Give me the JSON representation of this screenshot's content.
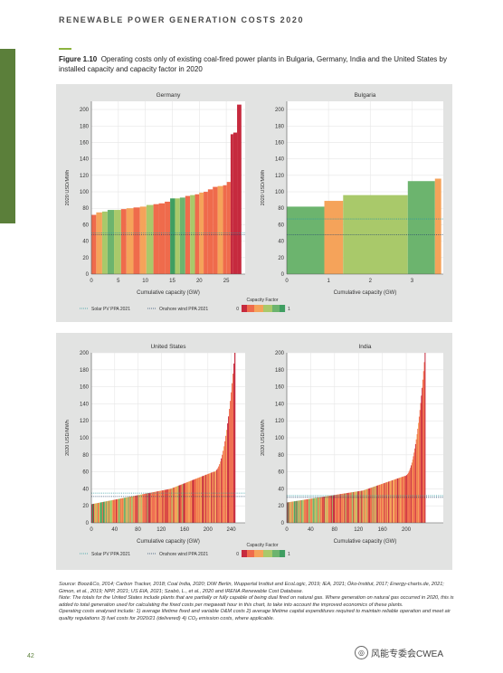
{
  "header": {
    "running_title": "RENEWABLE POWER GENERATION COSTS 2020"
  },
  "figure": {
    "number": "Figure 1.10",
    "caption": "Operating costs only of existing coal-fired power plants in Bulgaria, Germany, India and the United States by installed capacity and capacity factor in 2020"
  },
  "colors": {
    "panel_bg": "#e2e3e2",
    "solar_line": "#2c9aa0",
    "wind_line": "#2a4a6e",
    "cf_scale": [
      "#c62a3e",
      "#ef6b4c",
      "#f5a35a",
      "#a9c96a",
      "#6cb46e",
      "#3f9e61"
    ]
  },
  "legend": {
    "solar": "Solar PV PPA 2021",
    "wind": "Onshore wind PPA 2021",
    "cf_title": "Capacity Factor",
    "cf_min": "0",
    "cf_max": "1"
  },
  "chart_data": [
    {
      "type": "bar",
      "title": "Germany",
      "xlabel": "Cumulative capacity (GW)",
      "ylabel": "2020 USD/MWh",
      "xlim": [
        0,
        28.5
      ],
      "ylim": [
        0,
        210
      ],
      "xticks": [
        0,
        5,
        10,
        15,
        20,
        25
      ],
      "yticks": [
        0,
        20,
        40,
        60,
        80,
        100,
        120,
        140,
        160,
        180,
        200
      ],
      "solar_ppa": 50,
      "wind_ppa": 48,
      "bars": [
        {
          "x0": 0,
          "x1": 0.9,
          "value": 72,
          "cf": 0.28
        },
        {
          "x0": 0.9,
          "x1": 2.0,
          "value": 75,
          "cf": 0.45
        },
        {
          "x0": 2.0,
          "x1": 3.0,
          "value": 76,
          "cf": 0.6
        },
        {
          "x0": 3.0,
          "x1": 4.2,
          "value": 78,
          "cf": 0.7
        },
        {
          "x0": 4.2,
          "x1": 5.5,
          "value": 78,
          "cf": 0.55
        },
        {
          "x0": 5.5,
          "x1": 6.5,
          "value": 79,
          "cf": 0.25
        },
        {
          "x0": 6.5,
          "x1": 7.8,
          "value": 80,
          "cf": 0.45
        },
        {
          "x0": 7.8,
          "x1": 9.0,
          "value": 81,
          "cf": 0.2
        },
        {
          "x0": 9.0,
          "x1": 10.2,
          "value": 82,
          "cf": 0.3
        },
        {
          "x0": 10.2,
          "x1": 11.5,
          "value": 84,
          "cf": 0.58
        },
        {
          "x0": 11.5,
          "x1": 12.5,
          "value": 85,
          "cf": 0.22
        },
        {
          "x0": 12.5,
          "x1": 13.6,
          "value": 86,
          "cf": 0.28
        },
        {
          "x0": 13.6,
          "x1": 14.6,
          "value": 88,
          "cf": 0.2
        },
        {
          "x0": 14.6,
          "x1": 15.5,
          "value": 92,
          "cf": 0.9
        },
        {
          "x0": 15.5,
          "x1": 16.4,
          "value": 92,
          "cf": 0.62
        },
        {
          "x0": 16.4,
          "x1": 17.4,
          "value": 93,
          "cf": 0.72
        },
        {
          "x0": 17.4,
          "x1": 18.3,
          "value": 95,
          "cf": 0.25
        },
        {
          "x0": 18.3,
          "x1": 19.2,
          "value": 96,
          "cf": 0.55
        },
        {
          "x0": 19.2,
          "x1": 20.0,
          "value": 97,
          "cf": 0.2
        },
        {
          "x0": 20.0,
          "x1": 20.8,
          "value": 99,
          "cf": 0.3
        },
        {
          "x0": 20.8,
          "x1": 21.6,
          "value": 100,
          "cf": 0.22
        },
        {
          "x0": 21.6,
          "x1": 22.5,
          "value": 103,
          "cf": 0.28
        },
        {
          "x0": 22.5,
          "x1": 23.4,
          "value": 106,
          "cf": 0.24
        },
        {
          "x0": 23.4,
          "x1": 24.4,
          "value": 107,
          "cf": 0.35
        },
        {
          "x0": 24.4,
          "x1": 25.1,
          "value": 108,
          "cf": 0.18
        },
        {
          "x0": 25.1,
          "x1": 25.8,
          "value": 112,
          "cf": 0.12
        },
        {
          "x0": 25.8,
          "x1": 26.3,
          "value": 170,
          "cf": 0.08
        },
        {
          "x0": 26.3,
          "x1": 27.0,
          "value": 172,
          "cf": 0.06
        },
        {
          "x0": 27.0,
          "x1": 27.8,
          "value": 206,
          "cf": 0.03
        }
      ]
    },
    {
      "type": "bar",
      "title": "Bulgaria",
      "xlabel": "Cumulative capacity (GW)",
      "ylabel": "2020 USD/MWh",
      "xlim": [
        0,
        3.75
      ],
      "ylim": [
        0,
        210
      ],
      "xticks": [
        0,
        1,
        2,
        3
      ],
      "yticks": [
        0,
        20,
        40,
        60,
        80,
        100,
        120,
        140,
        160,
        180,
        200
      ],
      "solar_ppa": 67,
      "wind_ppa": 48,
      "bars": [
        {
          "x0": 0.0,
          "x1": 0.9,
          "value": 82,
          "cf": 0.82
        },
        {
          "x0": 0.9,
          "x1": 1.35,
          "value": 89,
          "cf": 0.38
        },
        {
          "x0": 1.35,
          "x1": 2.9,
          "value": 96,
          "cf": 0.68
        },
        {
          "x0": 2.9,
          "x1": 3.55,
          "value": 113,
          "cf": 0.7
        },
        {
          "x0": 3.55,
          "x1": 3.7,
          "value": 116,
          "cf": 0.35
        }
      ]
    },
    {
      "type": "bar",
      "title": "United States",
      "xlabel": "Cumulative capacity (GW)",
      "ylabel": "2020 USD/MWh",
      "xlim": [
        0,
        264
      ],
      "ylim": [
        0,
        200
      ],
      "xticks": [
        0,
        40,
        80,
        120,
        160,
        200,
        240
      ],
      "yticks": [
        0,
        20,
        40,
        60,
        80,
        100,
        120,
        140,
        160,
        180,
        200
      ],
      "solar_ppa": 35,
      "wind_ppa": 31,
      "curve": {
        "n": 160,
        "x_end": 247,
        "start": 22,
        "mid": 40,
        "knee": 60,
        "end": 200
      }
    },
    {
      "type": "bar",
      "title": "India",
      "xlabel": "Cumulative capacity (GW)",
      "ylabel": "2020 USD/MWh",
      "xlim": [
        0,
        262
      ],
      "ylim": [
        0,
        200
      ],
      "xticks": [
        0,
        40,
        80,
        120,
        160,
        200
      ],
      "yticks": [
        0,
        20,
        40,
        60,
        80,
        100,
        120,
        140,
        160,
        180,
        200
      ],
      "solar_ppa": 32,
      "wind_ppa": 30,
      "curve": {
        "n": 190,
        "x_end": 232,
        "start": 24,
        "mid": 38,
        "knee": 55,
        "end": 200
      }
    }
  ],
  "notes": {
    "source": "Source: Booz&Co, 2014; Carbon Tracker, 2018; Coal India, 2020; DIW Berlin, Wuppertal Institut and EcoLogic, 2019; IEA, 2021; Öko-Institut, 2017; Energy-charts.de, 2021; Gimon, et al., 2019; NPP, 2021; US EIA, 2021; Szabó, L., et al., 2020 and IRENA Renewable Cost Database.",
    "note": "Note: The totals for the United States include plants that are partially or fully capable of being dual fired on natural gas. Where generation on natural gas occurred in 2020, this is added to total generation used for calculating the fixed costs per megawatt hour in this chart, to take into account the improved economics of these plants.",
    "operating": "Operating costs analysed include: 1) average lifetime fixed and variable O&M costs 2) average lifetime capital expenditures required to maintain reliable operation and meet air quality regulations 3) fuel costs for 2020/21 (delivered) 4) CO₂ emission costs, where applicable."
  },
  "page_number": "42",
  "watermark": "风能专委会CWEA"
}
